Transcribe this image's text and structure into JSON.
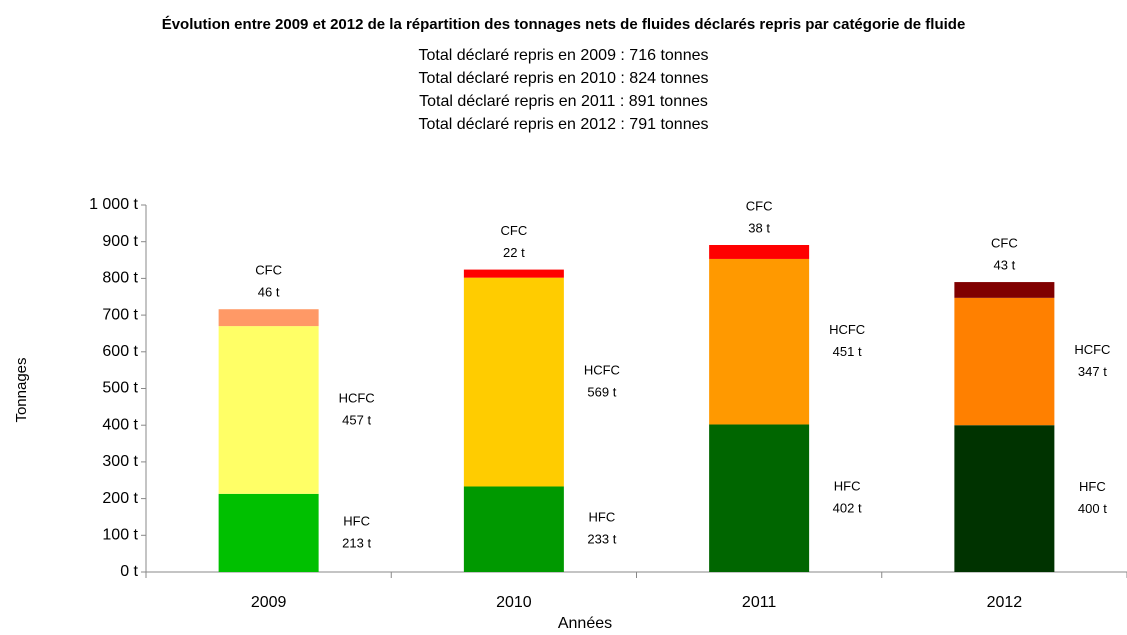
{
  "chart_data": {
    "type": "stacked_bar",
    "title": "Évolution entre 2009 et 2012 de la répartition des tonnages nets de fluides déclarés repris par catégorie de fluide",
    "subtitle": [
      "Total déclaré repris en 2009 : 716 tonnes",
      "Total déclaré repris en 2010 : 824 tonnes",
      "Total déclaré repris en 2011 : 891 tonnes",
      "Total déclaré repris en 2012 : 791 tonnes"
    ],
    "x_label": "Années",
    "y_label": "Tonnages",
    "categories": [
      "2009",
      "2010",
      "2011",
      "2012"
    ],
    "series": [
      {
        "name": "HFC",
        "colors": [
          "#00c000",
          "#009900",
          "#006600",
          "#003300"
        ],
        "values": [
          213,
          233,
          402,
          400
        ],
        "value_labels": [
          "213 t",
          "233 t",
          "402 t",
          "400 t"
        ]
      },
      {
        "name": "HCFC",
        "colors": [
          "#ffff66",
          "#ffcc00",
          "#ff9900",
          "#ff8000"
        ],
        "values": [
          457,
          569,
          451,
          347
        ],
        "value_labels": [
          "457 t",
          "569 t",
          "451 t",
          "347 t"
        ]
      },
      {
        "name": "CFC",
        "colors": [
          "#ff9966",
          "#ff0000",
          "#ff0000",
          "#800000"
        ],
        "values": [
          46,
          22,
          38,
          43
        ],
        "value_labels": [
          "46 t",
          "22 t",
          "38 t",
          "43 t"
        ]
      }
    ],
    "ylim": [
      0,
      1000
    ],
    "yticks": [
      {
        "value": 0,
        "label": "0 t"
      },
      {
        "value": 100,
        "label": "100 t"
      },
      {
        "value": 200,
        "label": "200 t"
      },
      {
        "value": 300,
        "label": "300 t"
      },
      {
        "value": 400,
        "label": "400 t"
      },
      {
        "value": 500,
        "label": "500 t"
      },
      {
        "value": 600,
        "label": "600 t"
      },
      {
        "value": 700,
        "label": "700 t"
      },
      {
        "value": 800,
        "label": "800 t"
      },
      {
        "value": 900,
        "label": "900 t"
      },
      {
        "value": 1000,
        "label": "1 000 t"
      }
    ]
  }
}
